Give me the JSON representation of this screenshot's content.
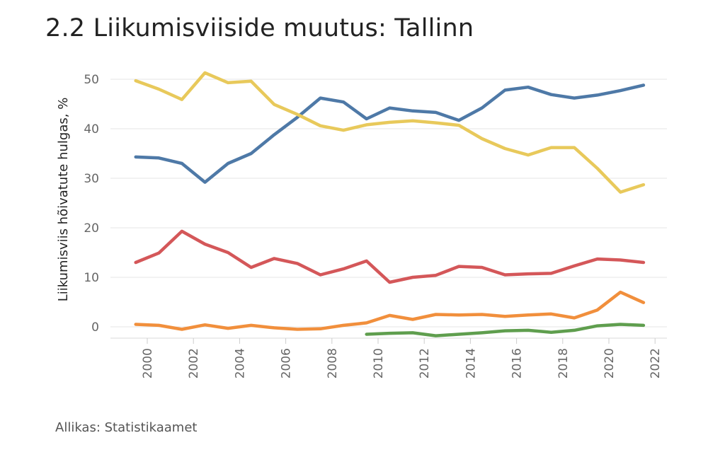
{
  "header": {
    "title": "2.2 Liikumisviiside muutus: Tallinn"
  },
  "footer": {
    "source": "Allikas: Statistikaamet"
  },
  "chart_data": {
    "type": "line",
    "title": "2.2 Liikumisviiside muutus: Tallinn",
    "xlabel": "",
    "ylabel": "Liikumisviis hõivatute hulgas, %",
    "ylim": [
      0,
      53
    ],
    "xlim": [
      1999,
      2022.5
    ],
    "yticks": [
      0,
      10,
      20,
      30,
      40,
      50
    ],
    "xticks": [
      2000,
      2002,
      2004,
      2006,
      2008,
      2010,
      2012,
      2014,
      2016,
      2018,
      2020,
      2022
    ],
    "grid": true,
    "legend": "none",
    "series": [
      {
        "color": "#4e79a7",
        "x": [
          2000,
          2001,
          2002,
          2003,
          2004,
          2005,
          2006,
          2007,
          2008,
          2009,
          2010,
          2011,
          2012,
          2013,
          2014,
          2015,
          2016,
          2017,
          2018,
          2019,
          2020,
          2021,
          2022
        ],
        "values": [
          34.3,
          34.1,
          33.0,
          29.2,
          33.0,
          35.0,
          38.8,
          42.3,
          46.2,
          45.4,
          42.0,
          44.2,
          43.6,
          43.3,
          41.7,
          44.2,
          47.8,
          48.4,
          46.9,
          46.2,
          46.8,
          47.7,
          48.8
        ]
      },
      {
        "color": "#e8c95b",
        "x": [
          2000,
          2001,
          2002,
          2003,
          2004,
          2005,
          2006,
          2007,
          2008,
          2009,
          2010,
          2011,
          2012,
          2013,
          2014,
          2015,
          2016,
          2017,
          2018,
          2019,
          2020,
          2021,
          2022
        ],
        "values": [
          49.7,
          48.0,
          45.9,
          51.3,
          49.3,
          49.6,
          44.9,
          42.9,
          40.6,
          39.7,
          40.8,
          41.3,
          41.6,
          41.2,
          40.7,
          38.0,
          36.0,
          34.7,
          36.2,
          36.2,
          32.0,
          27.2,
          28.7
        ]
      },
      {
        "color": "#d45759",
        "x": [
          2000,
          2001,
          2002,
          2003,
          2004,
          2005,
          2006,
          2007,
          2008,
          2009,
          2010,
          2011,
          2012,
          2013,
          2014,
          2015,
          2016,
          2017,
          2018,
          2019,
          2020,
          2021,
          2022
        ],
        "values": [
          13.0,
          14.9,
          19.3,
          16.7,
          15.0,
          12.0,
          13.8,
          12.8,
          10.5,
          11.7,
          13.3,
          9.0,
          10.0,
          10.4,
          12.2,
          12.0,
          10.5,
          10.7,
          10.8,
          12.3,
          13.7,
          13.5,
          13.0
        ]
      },
      {
        "color": "#f18f3c",
        "x": [
          2000,
          2001,
          2002,
          2003,
          2004,
          2005,
          2006,
          2007,
          2008,
          2009,
          2010,
          2011,
          2012,
          2013,
          2014,
          2015,
          2016,
          2017,
          2018,
          2019,
          2020,
          2021,
          2022
        ],
        "values": [
          0.5,
          0.3,
          -0.5,
          0.4,
          -0.3,
          0.3,
          -0.2,
          -0.5,
          -0.4,
          0.3,
          0.8,
          2.3,
          1.5,
          2.5,
          2.4,
          2.5,
          2.1,
          2.4,
          2.6,
          1.8,
          3.4,
          7.0,
          4.9
        ]
      },
      {
        "color": "#5f9e4e",
        "x": [
          2010,
          2011,
          2012,
          2013,
          2014,
          2015,
          2016,
          2017,
          2018,
          2019,
          2020,
          2021,
          2022
        ],
        "values": [
          -1.5,
          -1.3,
          -1.2,
          -1.8,
          -1.5,
          -1.2,
          -0.8,
          -0.7,
          -1.1,
          -0.7,
          0.2,
          0.5,
          0.3
        ]
      }
    ]
  }
}
